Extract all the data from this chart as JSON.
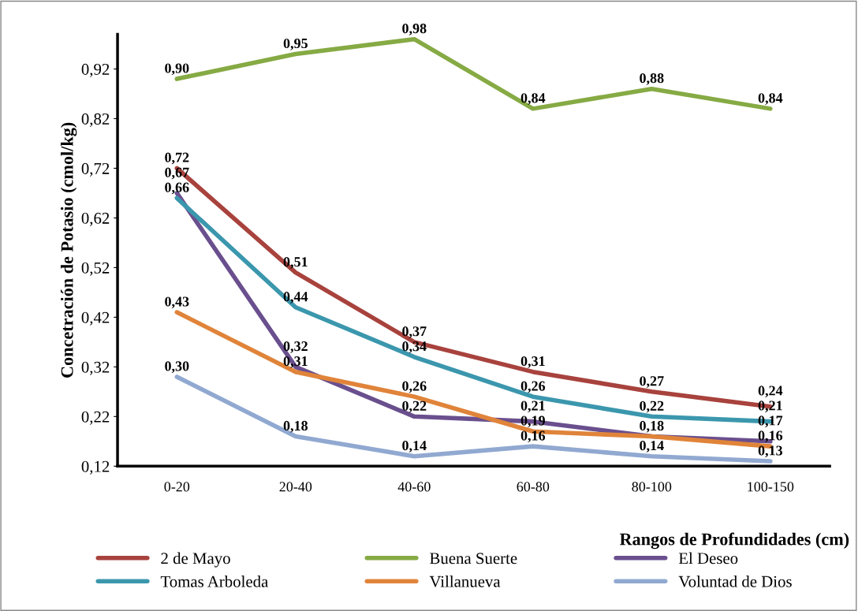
{
  "chart_data": {
    "type": "line",
    "xlabel": "Rangos de Profundidades (cm)",
    "ylabel": "Concetración de Potasio (cmol/kg)",
    "categories": [
      "0-20",
      "20-40",
      "40-60",
      "60-80",
      "80-100",
      "100-150"
    ],
    "series": [
      {
        "name": "2 de Mayo",
        "color": "#a8423d",
        "values": [
          0.72,
          0.51,
          0.37,
          0.31,
          0.27,
          0.24
        ],
        "value_labels": [
          "0,72",
          "0,51",
          "0,37",
          "0,31",
          "0,27",
          "0,24"
        ]
      },
      {
        "name": "Buena Suerte",
        "color": "#86aa44",
        "values": [
          0.9,
          0.95,
          0.98,
          0.84,
          0.88,
          0.84
        ],
        "value_labels": [
          "0,90",
          "0,95",
          "0,98",
          "0,84",
          "0,88",
          "0,84"
        ]
      },
      {
        "name": "El Deseo",
        "color": "#6a4f8e",
        "values": [
          0.67,
          0.32,
          0.22,
          0.21,
          0.18,
          0.17
        ],
        "value_labels": [
          "0,67",
          "0,32",
          "0,22",
          "0,21",
          "0,18",
          "0,17"
        ]
      },
      {
        "name": "Tomas Arboleda",
        "color": "#3b97ad",
        "values": [
          0.66,
          0.44,
          0.34,
          0.26,
          0.22,
          0.21
        ],
        "value_labels": [
          "0,66",
          "0,44",
          "0,34",
          "0,26",
          "0,22",
          "0,21"
        ]
      },
      {
        "name": "Villanueva",
        "color": "#e0843a",
        "values": [
          0.43,
          0.31,
          0.26,
          0.19,
          0.18,
          0.16
        ],
        "value_labels": [
          "0,43",
          "0,31",
          "0,26",
          "0,19",
          null,
          "0,16"
        ]
      },
      {
        "name": "Voluntad de Dios",
        "color": "#91a9d1",
        "values": [
          0.3,
          0.18,
          0.14,
          0.16,
          0.14,
          0.13
        ],
        "value_labels": [
          "0,30",
          "0,18",
          "0,14",
          "0,16",
          "0,14",
          "0,13"
        ]
      }
    ],
    "ylim": [
      0.12,
      0.99
    ],
    "yticks": [
      {
        "value": 0.12,
        "label": "0,12"
      },
      {
        "value": 0.22,
        "label": "0,22"
      },
      {
        "value": 0.32,
        "label": "0,32"
      },
      {
        "value": 0.42,
        "label": "0,42"
      },
      {
        "value": 0.52,
        "label": "0,52"
      },
      {
        "value": 0.62,
        "label": "0,62"
      },
      {
        "value": 0.72,
        "label": "0,72"
      },
      {
        "value": 0.82,
        "label": "0,82"
      },
      {
        "value": 0.92,
        "label": "0,92"
      }
    ],
    "grid": false,
    "legend": "bottom",
    "marker": "none",
    "line_style": "solid"
  }
}
